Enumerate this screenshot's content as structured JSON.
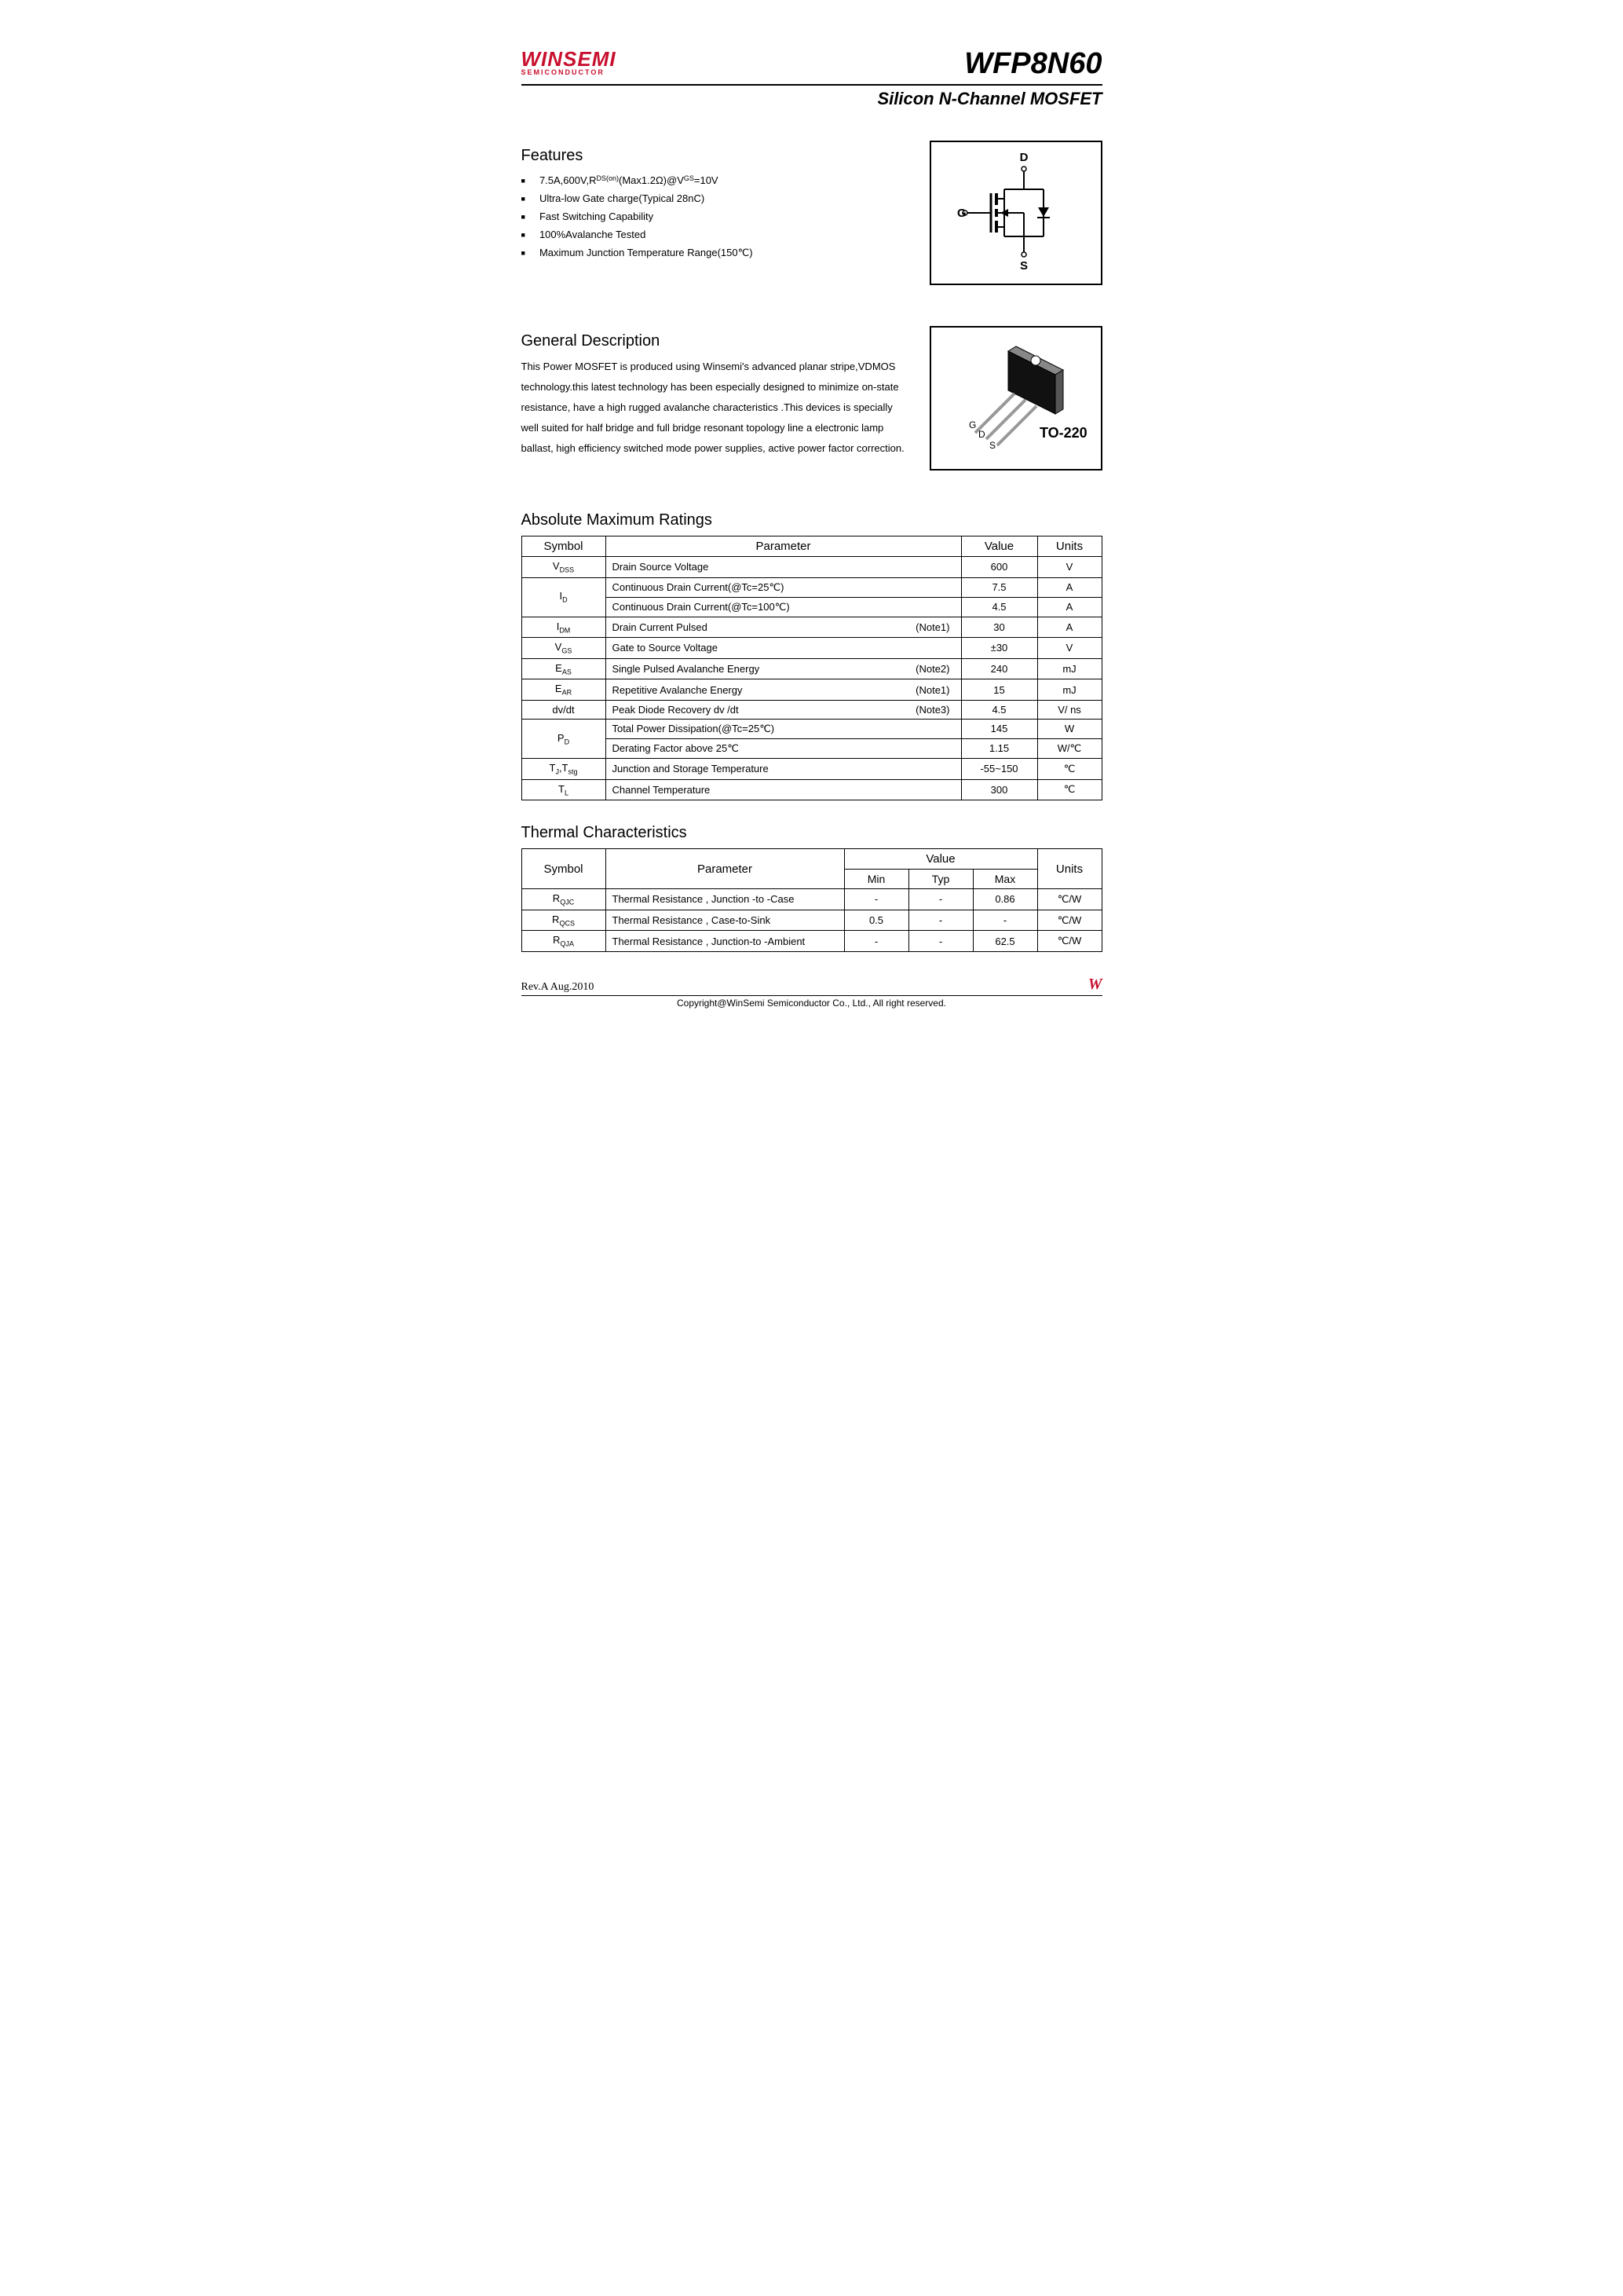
{
  "header": {
    "logo_main": "WINSEMI",
    "logo_sub": "SEMICONDUCTOR",
    "part_number": "WFP8N60",
    "subtitle": "Silicon N-Channel MOSFET"
  },
  "features": {
    "title": "Features",
    "items": [
      "7.5A,600V,RDS(on)(Max1.2Ω)@VGS=10V",
      "Ultra-low Gate charge(Typical 28nC)",
      "Fast Switching Capability",
      "100%Avalanche Tested",
      "Maximum Junction Temperature Range(150℃)"
    ]
  },
  "description": {
    "title": "General Description",
    "text": "This Power  MOSFET  is produced using Winsemi's advanced planar stripe,VDMOS technology.this latest technology has been especially designed to minimize on-state resistance, have a high rugged avalanche  characteristics .This devices is specially well suited  for half bridge and  full bridge resonant  topology line a electronic  lamp ballast,  high efficiency switched  mode power supplies, active power factor correction."
  },
  "diagrams": {
    "pin_d": "D",
    "pin_g": "G",
    "pin_s": "S",
    "package": "TO-220"
  },
  "abs_max": {
    "title": "Absolute Maximum Ratings",
    "headers": {
      "symbol": "Symbol",
      "parameter": "Parameter",
      "value": "Value",
      "units": "Units"
    },
    "rows": [
      {
        "symbol_html": "V<sub>DSS</sub>",
        "param": "Drain Source Voltage",
        "note": "",
        "value": "600",
        "units": "V",
        "rowspan": 1
      },
      {
        "symbol_html": "I<sub>D</sub>",
        "param": "Continuous Drain Current(@Tc=25℃)",
        "note": "",
        "value": "7.5",
        "units": "A",
        "rowspan": 2
      },
      {
        "symbol_html": "",
        "param": "Continuous Drain Current(@Tc=100℃)",
        "note": "",
        "value": "4.5",
        "units": "A",
        "rowspan": 0
      },
      {
        "symbol_html": "I<sub>DM</sub>",
        "param": "Drain Current Pulsed",
        "note": "(Note1)",
        "value": "30",
        "units": "A",
        "rowspan": 1
      },
      {
        "symbol_html": "V<sub>GS</sub>",
        "param": "Gate to Source Voltage",
        "note": "",
        "value": "±30",
        "units": "V",
        "rowspan": 1
      },
      {
        "symbol_html": "E<sub>AS</sub>",
        "param": "Single Pulsed Avalanche Energy",
        "note": "(Note2)",
        "value": "240",
        "units": "mJ",
        "rowspan": 1
      },
      {
        "symbol_html": "E<sub>AR</sub>",
        "param": "Repetitive Avalanche Energy",
        "note": "(Note1)",
        "value": "15",
        "units": "mJ",
        "rowspan": 1
      },
      {
        "symbol_html": "dv/dt",
        "param": "Peak Diode Recovery dv /dt",
        "note": "(Note3)",
        "value": "4.5",
        "units": "V/ ns",
        "rowspan": 1
      },
      {
        "symbol_html": "P<sub>D</sub>",
        "param": "Total Power Dissipation(@Tc=25℃)",
        "note": "",
        "value": "145",
        "units": "W",
        "rowspan": 2
      },
      {
        "symbol_html": "",
        "param": "Derating Factor above 25℃",
        "note": "",
        "value": "1.15",
        "units": "W/℃",
        "rowspan": 0
      },
      {
        "symbol_html": "T<sub>J</sub>,T<sub>stg</sub>",
        "param": "Junction and Storage Temperature",
        "note": "",
        "value": "-55~150",
        "units": "℃",
        "rowspan": 1
      },
      {
        "symbol_html": "T<sub>L</sub>",
        "param": "Channel Temperature",
        "note": "",
        "value": "300",
        "units": "℃",
        "rowspan": 1
      }
    ]
  },
  "thermal": {
    "title": "Thermal Characteristics",
    "headers": {
      "symbol": "Symbol",
      "parameter": "Parameter",
      "value": "Value",
      "min": "Min",
      "typ": "Typ",
      "max": "Max",
      "units": "Units"
    },
    "rows": [
      {
        "symbol_html": "R<sub>QJC</sub>",
        "param": "Thermal Resistance , Junction -to -Case",
        "min": "-",
        "typ": "-",
        "max": "0.86",
        "units": "℃/W"
      },
      {
        "symbol_html": "R<sub>QCS</sub>",
        "param": "Thermal Resistance , Case-to-Sink",
        "min": "0.5",
        "typ": "-",
        "max": "-",
        "units": "℃/W"
      },
      {
        "symbol_html": "R<sub>QJA</sub>",
        "param": "Thermal Resistance , Junction-to -Ambient",
        "min": "-",
        "typ": "-",
        "max": "62.5",
        "units": "℃/W"
      }
    ]
  },
  "footer": {
    "rev": "Rev.A Aug.2010",
    "logo": "W",
    "copyright": "Copyright@WinSemi Semiconductor Co., Ltd., All right reserved."
  }
}
